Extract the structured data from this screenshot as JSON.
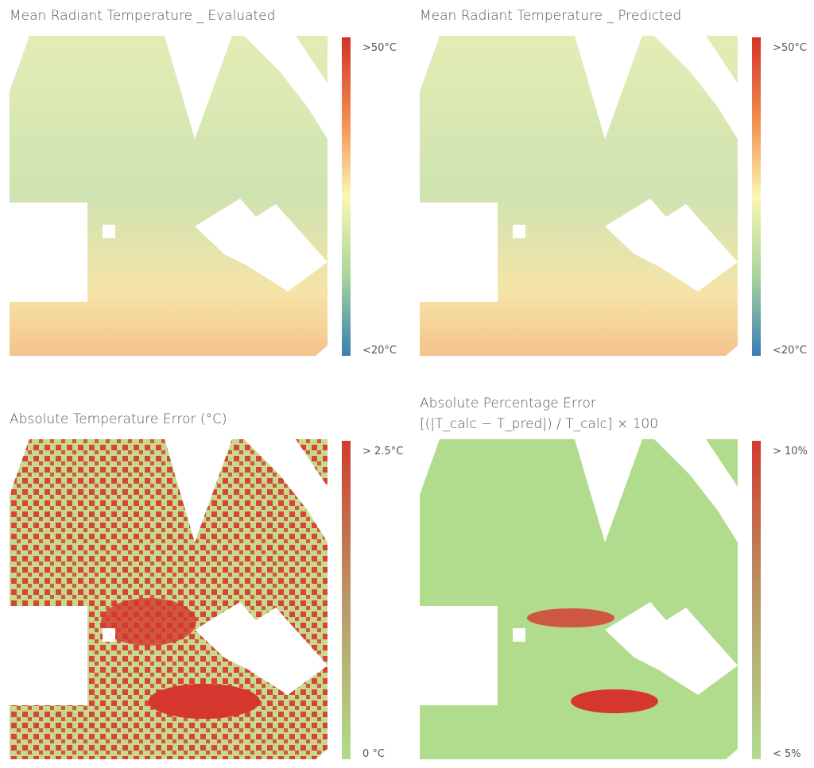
{
  "panels": [
    {
      "title": "Mean Radiant Temperature _ Evaluated",
      "scale_max": ">50°C",
      "scale_min": "<20°C"
    },
    {
      "title": "Mean Radiant Temperature _ Predicted",
      "scale_max": ">50°C",
      "scale_min": "<20°C"
    },
    {
      "title": "Absolute Temperature Error (°C)",
      "scale_max": "> 2.5°C",
      "scale_min": "0 °C"
    },
    {
      "title": "Absolute Percentage Error",
      "subtitle": "[(|T_calc − T_pred|) / T_calc] × 100",
      "scale_max": "> 10%",
      "scale_min": "< 5%"
    }
  ]
}
